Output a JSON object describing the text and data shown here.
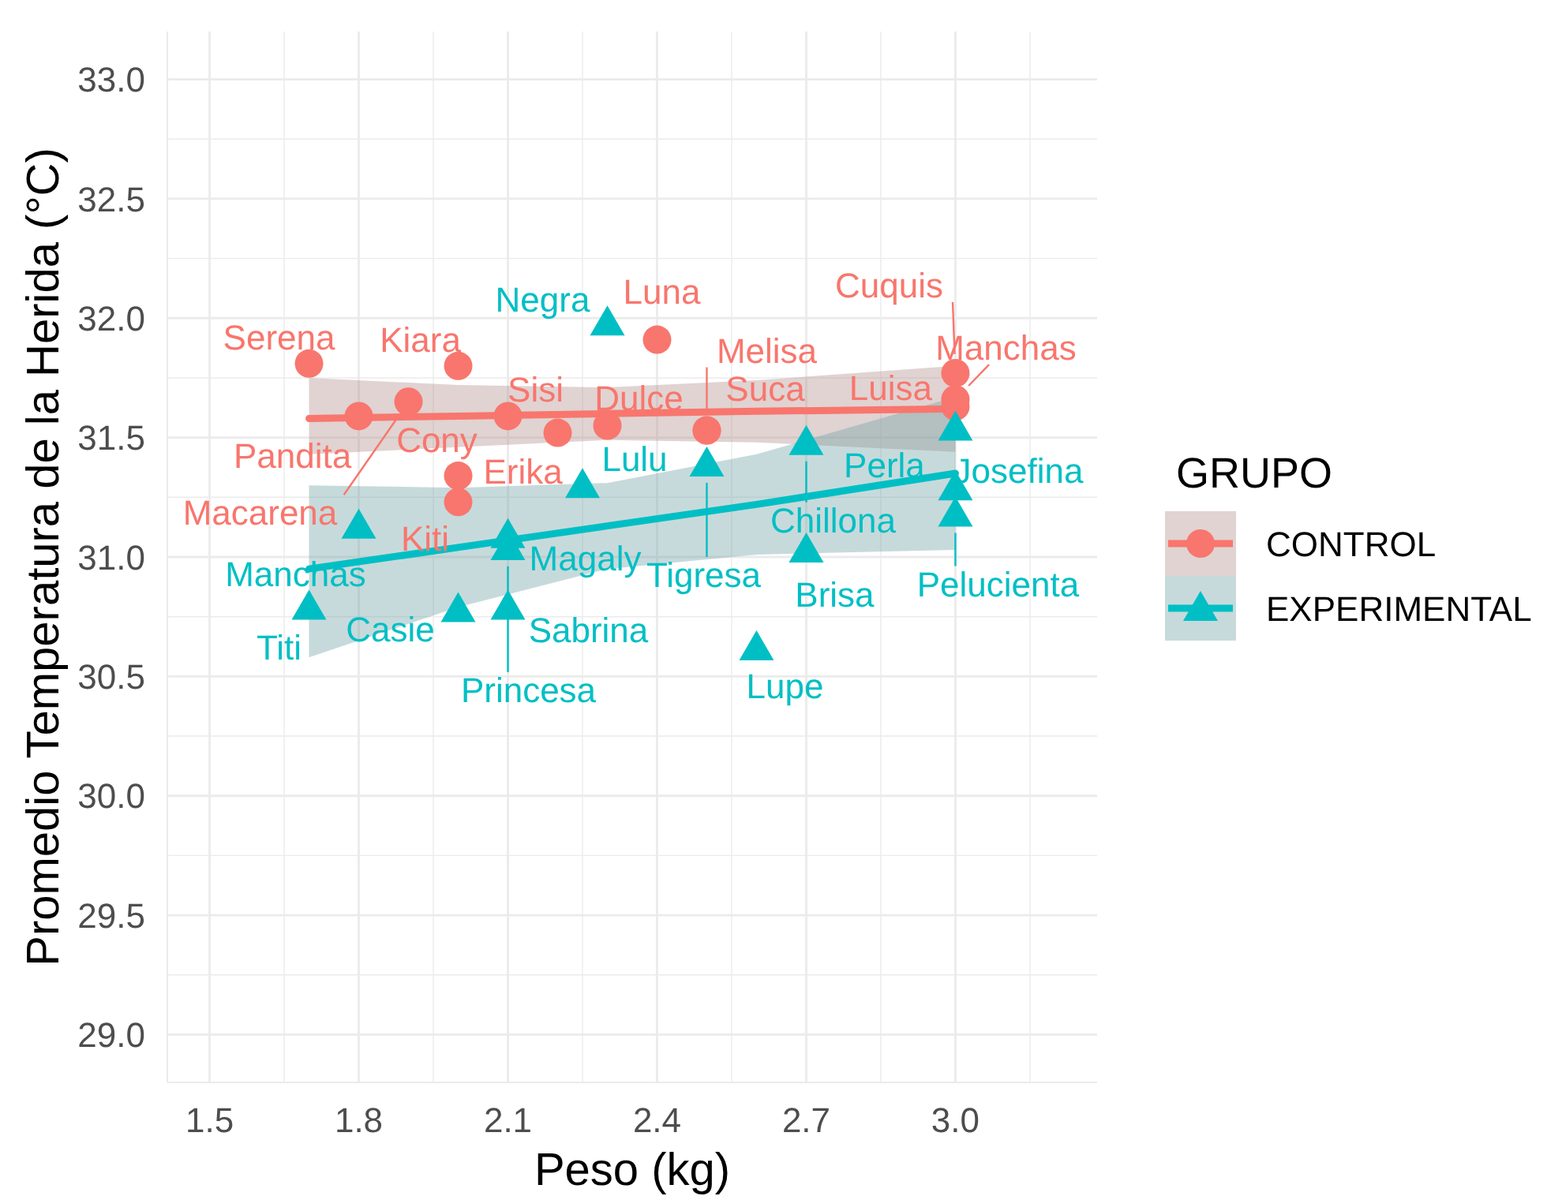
{
  "chart_data": {
    "type": "scatter",
    "xlabel": "Peso (kg)",
    "ylabel": "Promedio Temperatura de la Herida (°C)",
    "legend_title": "GRUPO",
    "legend": "right",
    "grid": true,
    "xlim": [
      1.415,
      3.285
    ],
    "xticks": [
      1.5,
      1.8,
      2.1,
      2.4,
      2.7,
      {
        "value": 3,
        "label": "3.0"
      }
    ],
    "ylim": [
      28.8,
      33.2
    ],
    "yticks": [
      {
        "value": 29,
        "label": "29.0"
      },
      29.5,
      {
        "value": 30,
        "label": "30.0"
      },
      30.5,
      {
        "value": 31,
        "label": "31.0"
      },
      31.5,
      {
        "value": 32,
        "label": "32.0"
      },
      32.5,
      {
        "value": 33,
        "label": "33.0"
      }
    ],
    "series": [
      {
        "name": "CONTROL",
        "color": "#f8766d",
        "marker": "circle",
        "x": [
          1.7,
          2.0,
          1.8,
          1.9,
          2.1,
          2.2,
          2.3,
          2.0,
          2.0,
          2.4,
          2.5,
          2.5,
          3.0,
          3.0,
          3.0
        ],
        "values": [
          31.81,
          31.8,
          31.59,
          31.65,
          31.59,
          31.52,
          31.55,
          31.34,
          31.23,
          31.91,
          31.53,
          31.53,
          31.77,
          31.66,
          31.63
        ],
        "value_labels": [
          "Serena",
          "Kiara",
          "Pandita",
          "Macarena",
          "Cony",
          "Sisi",
          "Dulce",
          "Erika",
          "Kiti",
          "Luna",
          "Melisa",
          "Suca",
          "Cuquis",
          "Manchas",
          "Luisa"
        ]
      },
      {
        "name": "EXPERIMENTAL",
        "color": "#00bfc4",
        "marker": "triangle",
        "x": [
          2.3,
          1.8,
          1.7,
          2.1,
          2.1,
          2.0,
          2.1,
          2.25,
          2.5,
          2.7,
          2.7,
          2.6,
          3.0,
          3.0,
          3.0
        ],
        "values": [
          31.98,
          31.13,
          30.79,
          31.09,
          30.79,
          30.78,
          31.04,
          31.3,
          31.39,
          31.48,
          31.03,
          30.62,
          31.54,
          31.29,
          31.18
        ],
        "value_labels": [
          "Negra",
          "Manchas",
          "Titi",
          "Magaly",
          "Sabrina",
          "Casie",
          "Princesa",
          "Lulu",
          "Tigresa",
          "Chillona",
          "Brisa",
          "Lupe",
          "Perla",
          "Josefina",
          "Pelucienta"
        ]
      },
      {
        "type": "line",
        "color": "#f8766d",
        "x": [
          1.7,
          2.0,
          2.3,
          2.6,
          3.0
        ],
        "values": [
          31.58,
          31.59,
          31.6,
          31.61,
          31.62
        ],
        "lower": [
          31.43,
          31.46,
          31.49,
          31.48,
          31.44
        ],
        "upper": [
          31.75,
          31.72,
          31.71,
          31.74,
          31.8
        ]
      },
      {
        "type": "line",
        "color": "#00bfc4",
        "x": [
          1.7,
          2.0,
          2.3,
          2.6,
          3.0
        ],
        "values": [
          30.95,
          31.04,
          31.13,
          31.22,
          31.35
        ],
        "lower": [
          30.58,
          30.79,
          30.95,
          31.01,
          31.03
        ],
        "upper": [
          31.3,
          31.29,
          31.31,
          31.43,
          31.67
        ]
      }
    ]
  }
}
